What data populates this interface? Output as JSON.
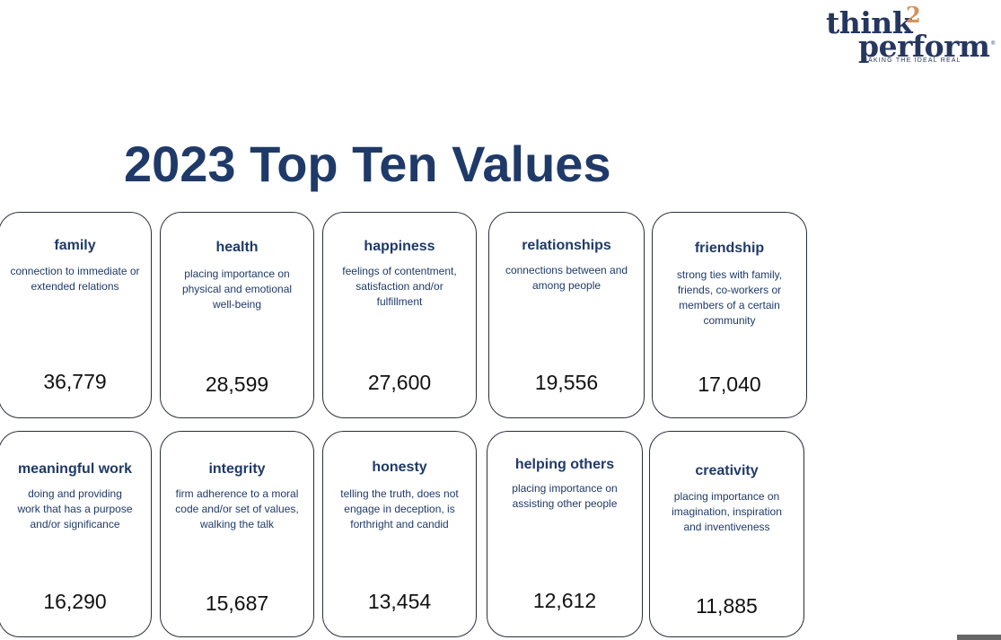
{
  "logo": {
    "think": "think",
    "superscript": "2",
    "perform": "perform",
    "registered": "®",
    "tagline": "MAKING THE IDEAL REAL"
  },
  "title": "2023 Top Ten Values",
  "colors": {
    "heading": "#1f3a68",
    "accent": "#d4935e",
    "card_border": "#2a2f3a"
  },
  "values": [
    {
      "name": "family",
      "description": "connection to immediate or extended relations",
      "count": "36,779"
    },
    {
      "name": "health",
      "description": "placing importance on physical and emotional well-being",
      "count": "28,599"
    },
    {
      "name": "happiness",
      "description": "feelings of contentment, satisfaction and/or fulfillment",
      "count": "27,600"
    },
    {
      "name": "relationships",
      "description": "connections between and among people",
      "count": "19,556"
    },
    {
      "name": "friendship",
      "description": "strong ties with family, friends, co-workers or members of a certain community",
      "count": "17,040"
    },
    {
      "name": "meaningful work",
      "description": "doing and providing work that has a purpose and/or significance",
      "count": "16,290"
    },
    {
      "name": "integrity",
      "description": "firm adherence to a moral code and/or set of values, walking the talk",
      "count": "15,687"
    },
    {
      "name": "honesty",
      "description": "telling the truth, does not engage in deception, is forthright and candid",
      "count": "13,454"
    },
    {
      "name": "helping others",
      "description": "placing importance on assisting other people",
      "count": "12,612"
    },
    {
      "name": "creativity",
      "description": "placing importance on imagination, inspiration and inventiveness",
      "count": "11,885"
    }
  ]
}
